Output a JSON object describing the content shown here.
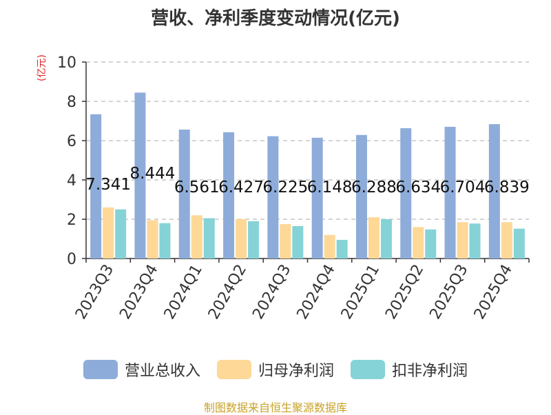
{
  "title": "营收、净利季度变动情况(亿元)",
  "unit_label": "(亿元)",
  "source": "制图数据来自恒生聚源数据库",
  "colors": {
    "revenue": "#8eacd9",
    "net_profit": "#fdd897",
    "deducted_profit": "#85d3d6",
    "axis": "#333333",
    "grid": "#bbbbbb",
    "unit": "#e02020",
    "source": "#c9a227"
  },
  "chart_data": {
    "type": "bar",
    "categories": [
      "2023Q3",
      "2023Q4",
      "2024Q1",
      "2024Q2",
      "2024Q3",
      "2024Q4",
      "2025Q1",
      "2025Q2",
      "2025Q3",
      "2025Q4"
    ],
    "series": [
      {
        "name": "营业总收入",
        "values": [
          7.341,
          8.444,
          6.561,
          6.427,
          6.225,
          6.148,
          6.288,
          6.634,
          6.704,
          6.839
        ]
      },
      {
        "name": "归母净利润",
        "values": [
          2.6,
          1.95,
          2.2,
          2.0,
          1.75,
          1.2,
          2.1,
          1.6,
          1.85,
          1.85
        ]
      },
      {
        "name": "扣非净利润",
        "values": [
          2.5,
          1.8,
          2.05,
          1.9,
          1.65,
          0.95,
          2.0,
          1.48,
          1.78,
          1.52
        ]
      }
    ],
    "data_labels": [
      "7.341",
      "8.444",
      "6.561",
      "6.427",
      "6.225",
      "6.148",
      "6.288",
      "6.634",
      "6.704",
      "6.839"
    ],
    "y_ticks": [
      "0",
      "2",
      "4",
      "6",
      "8",
      "10"
    ],
    "ylim": [
      0,
      10
    ],
    "grid": true,
    "legend_position": "bottom"
  }
}
